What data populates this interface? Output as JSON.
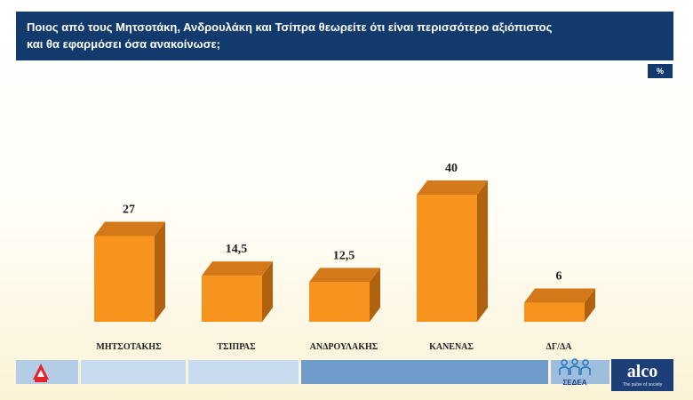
{
  "header": {
    "title_line1": "Ποιος από τους Μητσοτάκη, Ανδρουλάκη και Τσίπρα θεωρείτε ότι είναι περισσότερο αξιόπιστος",
    "title_line2": "και θα εφαρμόσει όσα ανακοίνωσε;",
    "unit": "%"
  },
  "chart_data": {
    "type": "bar",
    "categories": [
      "ΜΗΤΣΟΤΑΚΗΣ",
      "ΤΣΙΠΡΑΣ",
      "ΑΝΔΡΟΥΛΑΚΗΣ",
      "ΚΑΝΕΝΑΣ",
      "ΔΓ/ΔΑ"
    ],
    "values": [
      27,
      14.5,
      12.5,
      40,
      6
    ],
    "value_labels": [
      "27",
      "14,5",
      "12,5",
      "40",
      "6"
    ],
    "ylim": [
      0,
      40
    ],
    "grid": false,
    "legend": "none",
    "colors": {
      "bar_front": "#f7941d",
      "bar_top": "#d4791a",
      "bar_side": "#b0620f"
    }
  },
  "footer": {
    "sedea_label": "ΣΕΔΕΑ",
    "alco_label": "alco",
    "alco_tagline": "The pulse of society",
    "colors": [
      "#b4cde6",
      "#c9dcef",
      "#c9dcef",
      "#6f9ccb",
      "#9fbddd"
    ]
  }
}
